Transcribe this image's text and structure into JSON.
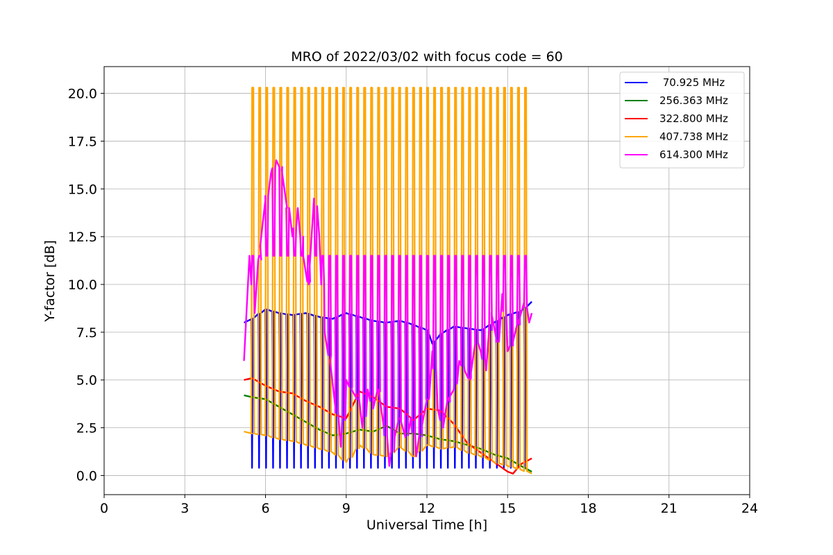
{
  "chart_data": {
    "type": "line",
    "title": "MRO of 2022/03/02 with focus code = 60",
    "xlabel": "Universal Time [h]",
    "ylabel": "Y-factor [dB]",
    "xlim": [
      0,
      24
    ],
    "ylim": [
      -1.0,
      21.4
    ],
    "x_ticks": [
      0,
      3,
      6,
      9,
      12,
      15,
      18,
      21,
      24
    ],
    "x_tick_labels": [
      "0",
      "3",
      "6",
      "9",
      "12",
      "15",
      "18",
      "21",
      "24"
    ],
    "y_ticks": [
      0.0,
      2.5,
      5.0,
      7.5,
      10.0,
      12.5,
      15.0,
      17.5,
      20.0
    ],
    "y_tick_labels": [
      "0.0",
      "2.5",
      "5.0",
      "7.5",
      "10.0",
      "12.5",
      "15.0",
      "17.5",
      "20.0"
    ],
    "grid": true,
    "legend_position": "top-right",
    "spikes": {
      "start": 5.5,
      "end": 15.75,
      "interval": 0.26,
      "note_values_dB": {
        "407.738 MHz": 20.3,
        "614.300 MHz": 11.5
      }
    },
    "series": [
      {
        "name": " 70.925 MHz",
        "color": "#0000ff",
        "x": [
          5.2,
          5.5,
          6.0,
          6.5,
          7.0,
          7.5,
          8.0,
          8.5,
          9.0,
          9.5,
          10.0,
          10.5,
          11.0,
          11.5,
          12.0,
          12.2,
          12.5,
          13.0,
          13.5,
          14.0,
          14.5,
          15.0,
          15.5,
          15.9
        ],
        "values": [
          8.0,
          8.2,
          8.7,
          8.5,
          8.4,
          8.5,
          8.3,
          8.2,
          8.5,
          8.3,
          8.1,
          8.0,
          8.1,
          7.9,
          7.6,
          6.9,
          7.4,
          7.8,
          7.7,
          7.6,
          8.0,
          8.4,
          8.6,
          9.1
        ],
        "spike_low": 0.4
      },
      {
        "name": "256.363 MHz",
        "color": "#008000",
        "x": [
          5.2,
          5.5,
          6.0,
          6.5,
          7.0,
          7.5,
          8.0,
          8.5,
          9.0,
          9.5,
          10.0,
          10.5,
          11.0,
          11.5,
          12.0,
          12.5,
          13.0,
          13.5,
          14.0,
          14.5,
          15.0,
          15.5,
          15.9
        ],
        "values": [
          4.2,
          4.1,
          4.0,
          3.6,
          3.2,
          2.8,
          2.4,
          2.1,
          2.2,
          2.4,
          2.3,
          2.6,
          2.2,
          2.2,
          2.1,
          1.9,
          1.8,
          1.6,
          1.4,
          1.1,
          0.9,
          0.5,
          0.2
        ]
      },
      {
        "name": "322.800 MHz",
        "color": "#ff0000",
        "x": [
          5.2,
          5.5,
          6.0,
          6.5,
          7.0,
          7.5,
          8.0,
          8.5,
          9.0,
          9.5,
          10.0,
          10.5,
          11.0,
          11.5,
          12.0,
          12.5,
          13.0,
          13.5,
          14.0,
          14.5,
          15.0,
          15.2,
          15.5,
          15.9
        ],
        "values": [
          5.0,
          5.1,
          4.7,
          4.4,
          4.3,
          3.9,
          3.6,
          3.2,
          3.0,
          4.4,
          4.1,
          3.6,
          3.5,
          2.9,
          3.5,
          3.4,
          2.7,
          1.7,
          1.2,
          0.7,
          0.2,
          0.1,
          0.6,
          0.9
        ]
      },
      {
        "name": "407.738 MHz",
        "color": "#ffa500",
        "x": [
          5.2,
          5.5,
          6.0,
          6.5,
          7.0,
          7.5,
          8.0,
          8.5,
          9.0,
          9.5,
          10.0,
          10.5,
          11.0,
          11.5,
          12.0,
          12.5,
          13.0,
          13.5,
          14.0,
          14.5,
          15.0,
          15.5,
          15.9
        ],
        "values": [
          2.3,
          2.2,
          2.1,
          1.9,
          1.8,
          1.6,
          1.4,
          1.2,
          0.7,
          1.6,
          1.1,
          1.0,
          1.5,
          1.0,
          1.6,
          1.4,
          1.5,
          1.2,
          1.0,
          0.7,
          0.5,
          0.3,
          0.1
        ]
      },
      {
        "name": "614.300 MHz",
        "color": "#ff00ff",
        "x": [
          5.2,
          5.4,
          5.6,
          5.8,
          6.0,
          6.2,
          6.4,
          6.6,
          6.8,
          7.0,
          7.2,
          7.4,
          7.6,
          7.8,
          8.0,
          8.2,
          8.4,
          8.6,
          8.8,
          9.0,
          9.2,
          9.4,
          9.6,
          9.8,
          10.0,
          10.2,
          10.4,
          10.6,
          10.8,
          11.0,
          11.2,
          11.4,
          11.6,
          11.8,
          12.0,
          12.2,
          12.4,
          12.6,
          12.8,
          13.0,
          13.2,
          13.4,
          13.6,
          13.8,
          14.0,
          14.2,
          14.4,
          14.6,
          14.8,
          15.0,
          15.2,
          15.4,
          15.6,
          15.8,
          15.9
        ],
        "values": [
          6.0,
          11.5,
          8.5,
          12.0,
          14.5,
          15.8,
          16.5,
          16.0,
          14.0,
          12.5,
          14.0,
          11.5,
          10.0,
          14.5,
          12.5,
          7.5,
          6.0,
          3.5,
          1.5,
          5.0,
          4.5,
          4.0,
          2.5,
          4.5,
          3.5,
          4.5,
          2.5,
          0.5,
          2.0,
          3.0,
          2.0,
          3.0,
          1.0,
          2.5,
          4.0,
          6.5,
          3.5,
          2.5,
          4.0,
          4.5,
          6.0,
          5.5,
          5.0,
          7.0,
          6.5,
          5.5,
          8.5,
          7.0,
          9.5,
          6.5,
          7.0,
          8.0,
          9.0,
          8.0,
          8.5
        ]
      }
    ]
  }
}
